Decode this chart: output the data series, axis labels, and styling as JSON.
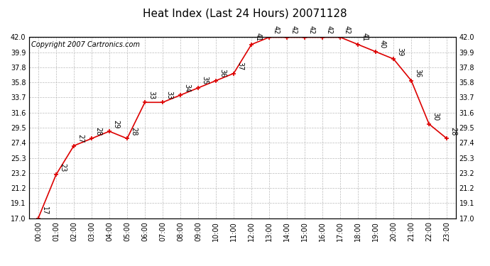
{
  "title": "Heat Index (Last 24 Hours) 20071128",
  "copyright": "Copyright 2007 Cartronics.com",
  "hours": [
    0,
    1,
    2,
    3,
    4,
    5,
    6,
    7,
    8,
    9,
    10,
    11,
    12,
    13,
    14,
    15,
    16,
    17,
    18,
    19,
    20,
    21,
    22,
    23
  ],
  "values": [
    17,
    23,
    27,
    28,
    29,
    28,
    33,
    33,
    34,
    35,
    36,
    37,
    41,
    42,
    42,
    42,
    42,
    42,
    41,
    40,
    39,
    36,
    30,
    28
  ],
  "yticks": [
    17.0,
    19.1,
    21.2,
    23.2,
    25.3,
    27.4,
    29.5,
    31.6,
    33.7,
    35.8,
    37.8,
    39.9,
    42.0
  ],
  "line_color": "#dd0000",
  "marker_color": "#dd0000",
  "bg_color": "#ffffff",
  "grid_color": "#bbbbbb",
  "plot_border_color": "#000000",
  "title_fontsize": 11,
  "tick_fontsize": 7,
  "annotation_fontsize": 7,
  "copyright_fontsize": 7
}
